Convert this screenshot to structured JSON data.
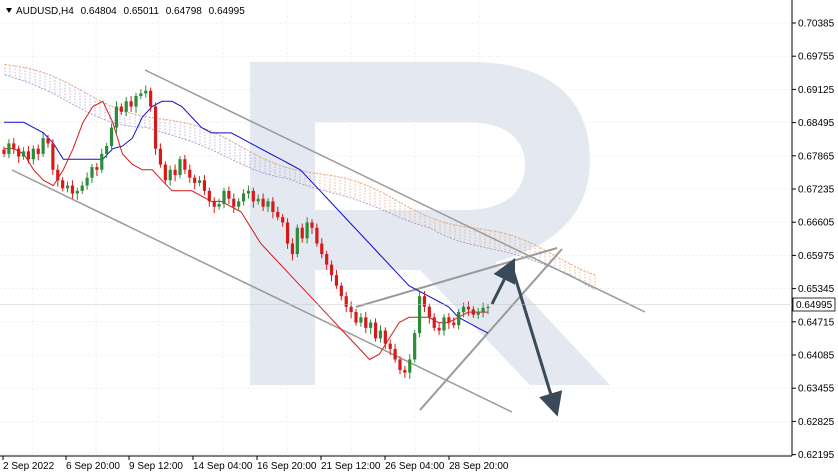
{
  "header": {
    "symbol": "AUDUSD,H4",
    "open": "0.64804",
    "high": "0.65011",
    "low": "0.64798",
    "close": "0.64995"
  },
  "current_price_label": "0.64995",
  "colors": {
    "bull_candle": "#2e8b3a",
    "bear_candle": "#d61a1a",
    "kijun": "#1010c8",
    "tenkan": "#d61a1a",
    "cloud_a": "#e8a070",
    "cloud_b": "#a898d0",
    "channel": "#9a9a9a",
    "arrow": "#3a4a58",
    "watermark": "#e3e8f1",
    "grid": "#e6e6e6"
  },
  "chart_data": {
    "type": "candlestick",
    "title": "AUDUSD,H4",
    "y_ticks": [
      "0.70385",
      "0.69755",
      "0.69125",
      "0.68495",
      "0.67865",
      "0.67235",
      "0.66605",
      "0.65975",
      "0.65345",
      "0.64715",
      "0.64085",
      "0.63455",
      "0.62825",
      "0.62195"
    ],
    "x_ticks": [
      "2 Sep 2022",
      "6 Sep 20:00",
      "9 Sep 12:00",
      "14 Sep 04:00",
      "16 Sep 20:00",
      "21 Sep 12:00",
      "26 Sep 04:00",
      "28 Sep 20:00"
    ],
    "ylim": [
      0.62195,
      0.70385
    ],
    "grid": true,
    "candle_count": 100,
    "close_values": [
      0.679,
      0.681,
      0.68,
      0.6785,
      0.6795,
      0.678,
      0.68,
      0.679,
      0.682,
      0.681,
      0.676,
      0.674,
      0.6725,
      0.673,
      0.6715,
      0.672,
      0.673,
      0.6745,
      0.6765,
      0.676,
      0.679,
      0.6805,
      0.684,
      0.688,
      0.687,
      0.689,
      0.688,
      0.69,
      0.6905,
      0.691,
      0.688,
      0.68,
      0.677,
      0.674,
      0.676,
      0.675,
      0.678,
      0.676,
      0.6745,
      0.6735,
      0.674,
      0.672,
      0.67,
      0.669,
      0.6695,
      0.672,
      0.6705,
      0.669,
      0.67,
      0.6715,
      0.672,
      0.67,
      0.6705,
      0.669,
      0.67,
      0.668,
      0.667,
      0.666,
      0.662,
      0.66,
      0.665,
      0.663,
      0.666,
      0.665,
      0.662,
      0.66,
      0.658,
      0.656,
      0.654,
      0.652,
      0.65,
      0.649,
      0.647,
      0.648,
      0.646,
      0.647,
      0.644,
      0.6455,
      0.643,
      0.642,
      0.64,
      0.638,
      0.6375,
      0.64,
      0.645,
      0.652,
      0.65,
      0.648,
      0.646,
      0.6455,
      0.648,
      0.647,
      0.6465,
      0.649,
      0.65,
      0.6495,
      0.6485,
      0.649,
      0.6498,
      0.64995
    ],
    "series": [
      {
        "type": "kijun",
        "values": [
          0.685,
          0.685,
          0.685,
          0.684,
          0.683,
          0.681,
          0.678,
          0.678,
          0.678,
          0.678,
          0.678,
          0.68,
          0.6805,
          0.682,
          0.686,
          0.688,
          0.689,
          0.689,
          0.688,
          0.686,
          0.684,
          0.683,
          0.683,
          0.683,
          0.682,
          0.681,
          0.68,
          0.679,
          0.678,
          0.677,
          0.676,
          0.674,
          0.672,
          0.67,
          0.668,
          0.666,
          0.664,
          0.662,
          0.66,
          0.658,
          0.656,
          0.654,
          0.653,
          0.652,
          0.651,
          0.65,
          0.648,
          0.647,
          0.646,
          0.645
        ]
      },
      {
        "type": "tenkan",
        "values": [
          0.68,
          0.68,
          0.679,
          0.676,
          0.674,
          0.673,
          0.676,
          0.68,
          0.685,
          0.688,
          0.689,
          0.685,
          0.679,
          0.677,
          0.676,
          0.676,
          0.674,
          0.672,
          0.672,
          0.672,
          0.671,
          0.67,
          0.67,
          0.669,
          0.668,
          0.665,
          0.662,
          0.66,
          0.658,
          0.656,
          0.654,
          0.652,
          0.65,
          0.648,
          0.646,
          0.644,
          0.642,
          0.64,
          0.641,
          0.644,
          0.647,
          0.648,
          0.648,
          0.648,
          0.647,
          0.647,
          0.648,
          0.649,
          0.649,
          0.649
        ]
      }
    ]
  }
}
